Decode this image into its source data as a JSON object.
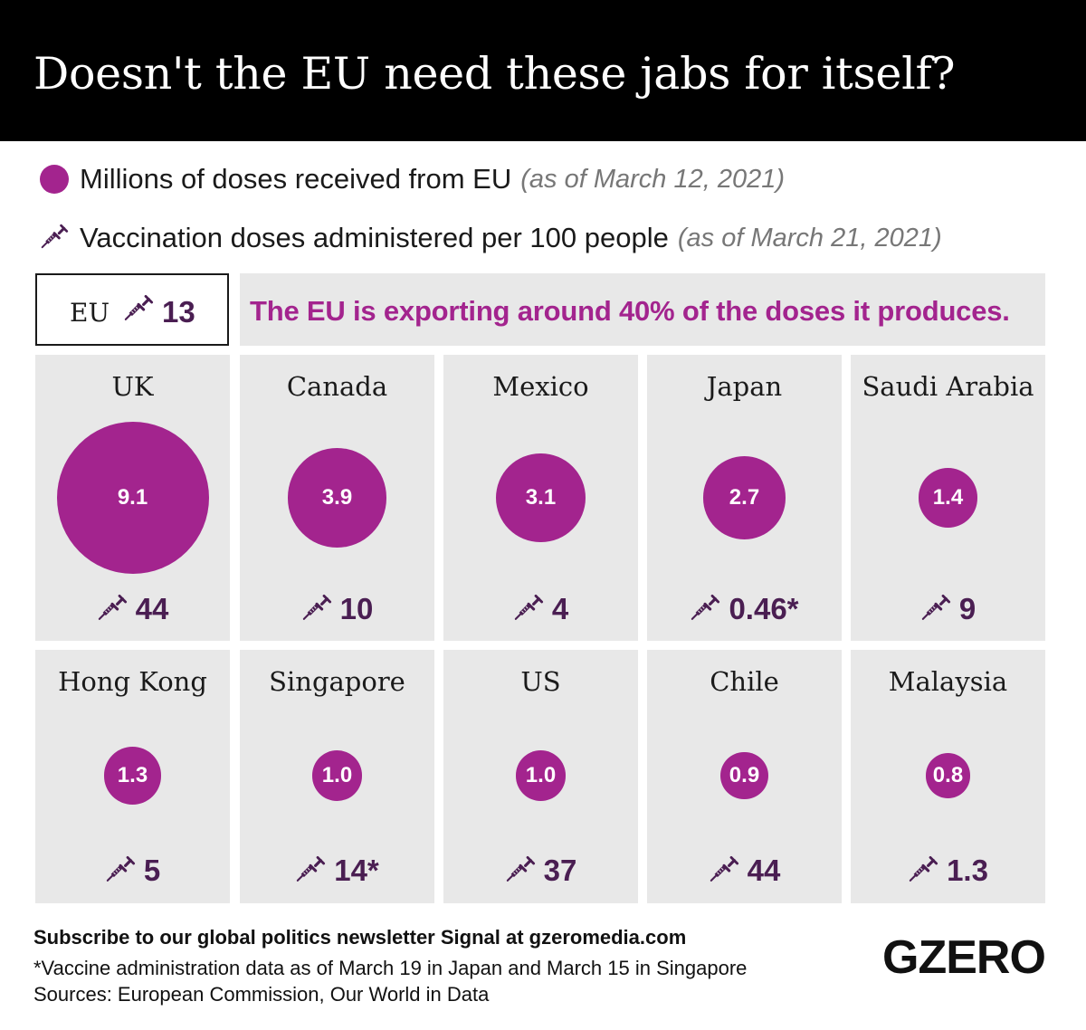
{
  "title": "Doesn't the EU need these jabs for itself?",
  "legend": {
    "doses": {
      "label": "Millions of doses received from EU",
      "note": "(as of March 12, 2021)",
      "icon": "circle-icon"
    },
    "vax": {
      "label": "Vaccination doses administered per 100 people",
      "note": "(as of March 21, 2021)",
      "icon": "syringe-icon"
    }
  },
  "eu": {
    "label": "EU",
    "value": "13"
  },
  "banner": "The EU is exporting around 40% of the doses it produces.",
  "colors": {
    "bubble": "#a3248e",
    "value_text": "#4a1e52",
    "tile_bg": "#e8e8e8"
  },
  "chart_data": {
    "type": "bubble-grid",
    "series": [
      {
        "name": "Millions of doses received from EU",
        "unit": "millions of doses"
      },
      {
        "name": "Vaccination doses administered per 100 people",
        "unit": "doses per 100 people"
      }
    ],
    "countries": [
      {
        "name": "UK",
        "doses": 9.1,
        "doses_label": "9.1",
        "vax": 44,
        "vax_label": "44"
      },
      {
        "name": "Canada",
        "doses": 3.9,
        "doses_label": "3.9",
        "vax": 10,
        "vax_label": "10"
      },
      {
        "name": "Mexico",
        "doses": 3.1,
        "doses_label": "3.1",
        "vax": 4,
        "vax_label": "4"
      },
      {
        "name": "Japan",
        "doses": 2.7,
        "doses_label": "2.7",
        "vax": 0.46,
        "vax_label": "0.46*"
      },
      {
        "name": "Saudi Arabia",
        "doses": 1.4,
        "doses_label": "1.4",
        "vax": 9,
        "vax_label": "9"
      },
      {
        "name": "Hong Kong",
        "doses": 1.3,
        "doses_label": "1.3",
        "vax": 5,
        "vax_label": "5"
      },
      {
        "name": "Singapore",
        "doses": 1.0,
        "doses_label": "1.0",
        "vax": 14,
        "vax_label": "14*"
      },
      {
        "name": "US",
        "doses": 1.0,
        "doses_label": "1.0",
        "vax": 37,
        "vax_label": "37"
      },
      {
        "name": "Chile",
        "doses": 0.9,
        "doses_label": "0.9",
        "vax": 44,
        "vax_label": "44"
      },
      {
        "name": "Malaysia",
        "doses": 0.8,
        "doses_label": "0.8",
        "vax": 1.3,
        "vax_label": "1.3"
      }
    ]
  },
  "footer": {
    "subscribe": "Subscribe to our global politics newsletter Signal at gzeromedia.com",
    "note": "*Vaccine administration data as of March 19 in Japan and March 15 in Singapore",
    "sources": "Sources: European Commission, Our World in Data",
    "logo": "GZERO"
  }
}
